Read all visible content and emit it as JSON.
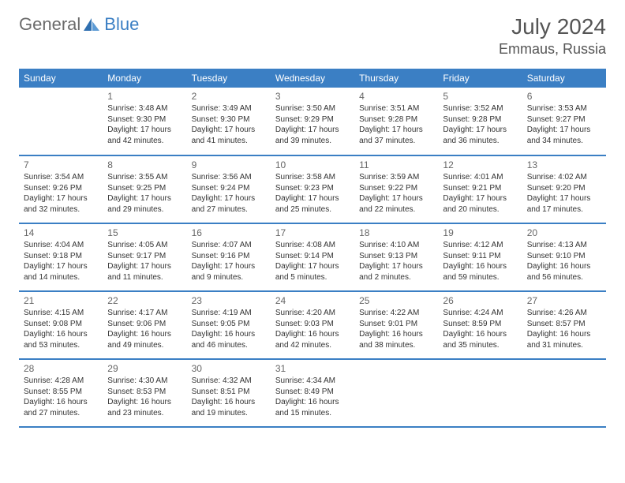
{
  "brand": {
    "general": "General",
    "blue": "Blue"
  },
  "title": {
    "month_year": "July 2024",
    "location": "Emmaus, Russia"
  },
  "colors": {
    "header_bg": "#3b7fc4",
    "header_text": "#ffffff",
    "row_border": "#3b7fc4",
    "body_text": "#333333",
    "title_text": "#555555",
    "logo_general": "#6b6b6b",
    "logo_blue": "#3b7fc4",
    "background": "#ffffff"
  },
  "weekdays": [
    "Sunday",
    "Monday",
    "Tuesday",
    "Wednesday",
    "Thursday",
    "Friday",
    "Saturday"
  ],
  "weeks": [
    [
      null,
      {
        "n": "1",
        "sr": "Sunrise: 3:48 AM",
        "ss": "Sunset: 9:30 PM",
        "d1": "Daylight: 17 hours",
        "d2": "and 42 minutes."
      },
      {
        "n": "2",
        "sr": "Sunrise: 3:49 AM",
        "ss": "Sunset: 9:30 PM",
        "d1": "Daylight: 17 hours",
        "d2": "and 41 minutes."
      },
      {
        "n": "3",
        "sr": "Sunrise: 3:50 AM",
        "ss": "Sunset: 9:29 PM",
        "d1": "Daylight: 17 hours",
        "d2": "and 39 minutes."
      },
      {
        "n": "4",
        "sr": "Sunrise: 3:51 AM",
        "ss": "Sunset: 9:28 PM",
        "d1": "Daylight: 17 hours",
        "d2": "and 37 minutes."
      },
      {
        "n": "5",
        "sr": "Sunrise: 3:52 AM",
        "ss": "Sunset: 9:28 PM",
        "d1": "Daylight: 17 hours",
        "d2": "and 36 minutes."
      },
      {
        "n": "6",
        "sr": "Sunrise: 3:53 AM",
        "ss": "Sunset: 9:27 PM",
        "d1": "Daylight: 17 hours",
        "d2": "and 34 minutes."
      }
    ],
    [
      {
        "n": "7",
        "sr": "Sunrise: 3:54 AM",
        "ss": "Sunset: 9:26 PM",
        "d1": "Daylight: 17 hours",
        "d2": "and 32 minutes."
      },
      {
        "n": "8",
        "sr": "Sunrise: 3:55 AM",
        "ss": "Sunset: 9:25 PM",
        "d1": "Daylight: 17 hours",
        "d2": "and 29 minutes."
      },
      {
        "n": "9",
        "sr": "Sunrise: 3:56 AM",
        "ss": "Sunset: 9:24 PM",
        "d1": "Daylight: 17 hours",
        "d2": "and 27 minutes."
      },
      {
        "n": "10",
        "sr": "Sunrise: 3:58 AM",
        "ss": "Sunset: 9:23 PM",
        "d1": "Daylight: 17 hours",
        "d2": "and 25 minutes."
      },
      {
        "n": "11",
        "sr": "Sunrise: 3:59 AM",
        "ss": "Sunset: 9:22 PM",
        "d1": "Daylight: 17 hours",
        "d2": "and 22 minutes."
      },
      {
        "n": "12",
        "sr": "Sunrise: 4:01 AM",
        "ss": "Sunset: 9:21 PM",
        "d1": "Daylight: 17 hours",
        "d2": "and 20 minutes."
      },
      {
        "n": "13",
        "sr": "Sunrise: 4:02 AM",
        "ss": "Sunset: 9:20 PM",
        "d1": "Daylight: 17 hours",
        "d2": "and 17 minutes."
      }
    ],
    [
      {
        "n": "14",
        "sr": "Sunrise: 4:04 AM",
        "ss": "Sunset: 9:18 PM",
        "d1": "Daylight: 17 hours",
        "d2": "and 14 minutes."
      },
      {
        "n": "15",
        "sr": "Sunrise: 4:05 AM",
        "ss": "Sunset: 9:17 PM",
        "d1": "Daylight: 17 hours",
        "d2": "and 11 minutes."
      },
      {
        "n": "16",
        "sr": "Sunrise: 4:07 AM",
        "ss": "Sunset: 9:16 PM",
        "d1": "Daylight: 17 hours",
        "d2": "and 9 minutes."
      },
      {
        "n": "17",
        "sr": "Sunrise: 4:08 AM",
        "ss": "Sunset: 9:14 PM",
        "d1": "Daylight: 17 hours",
        "d2": "and 5 minutes."
      },
      {
        "n": "18",
        "sr": "Sunrise: 4:10 AM",
        "ss": "Sunset: 9:13 PM",
        "d1": "Daylight: 17 hours",
        "d2": "and 2 minutes."
      },
      {
        "n": "19",
        "sr": "Sunrise: 4:12 AM",
        "ss": "Sunset: 9:11 PM",
        "d1": "Daylight: 16 hours",
        "d2": "and 59 minutes."
      },
      {
        "n": "20",
        "sr": "Sunrise: 4:13 AM",
        "ss": "Sunset: 9:10 PM",
        "d1": "Daylight: 16 hours",
        "d2": "and 56 minutes."
      }
    ],
    [
      {
        "n": "21",
        "sr": "Sunrise: 4:15 AM",
        "ss": "Sunset: 9:08 PM",
        "d1": "Daylight: 16 hours",
        "d2": "and 53 minutes."
      },
      {
        "n": "22",
        "sr": "Sunrise: 4:17 AM",
        "ss": "Sunset: 9:06 PM",
        "d1": "Daylight: 16 hours",
        "d2": "and 49 minutes."
      },
      {
        "n": "23",
        "sr": "Sunrise: 4:19 AM",
        "ss": "Sunset: 9:05 PM",
        "d1": "Daylight: 16 hours",
        "d2": "and 46 minutes."
      },
      {
        "n": "24",
        "sr": "Sunrise: 4:20 AM",
        "ss": "Sunset: 9:03 PM",
        "d1": "Daylight: 16 hours",
        "d2": "and 42 minutes."
      },
      {
        "n": "25",
        "sr": "Sunrise: 4:22 AM",
        "ss": "Sunset: 9:01 PM",
        "d1": "Daylight: 16 hours",
        "d2": "and 38 minutes."
      },
      {
        "n": "26",
        "sr": "Sunrise: 4:24 AM",
        "ss": "Sunset: 8:59 PM",
        "d1": "Daylight: 16 hours",
        "d2": "and 35 minutes."
      },
      {
        "n": "27",
        "sr": "Sunrise: 4:26 AM",
        "ss": "Sunset: 8:57 PM",
        "d1": "Daylight: 16 hours",
        "d2": "and 31 minutes."
      }
    ],
    [
      {
        "n": "28",
        "sr": "Sunrise: 4:28 AM",
        "ss": "Sunset: 8:55 PM",
        "d1": "Daylight: 16 hours",
        "d2": "and 27 minutes."
      },
      {
        "n": "29",
        "sr": "Sunrise: 4:30 AM",
        "ss": "Sunset: 8:53 PM",
        "d1": "Daylight: 16 hours",
        "d2": "and 23 minutes."
      },
      {
        "n": "30",
        "sr": "Sunrise: 4:32 AM",
        "ss": "Sunset: 8:51 PM",
        "d1": "Daylight: 16 hours",
        "d2": "and 19 minutes."
      },
      {
        "n": "31",
        "sr": "Sunrise: 4:34 AM",
        "ss": "Sunset: 8:49 PM",
        "d1": "Daylight: 16 hours",
        "d2": "and 15 minutes."
      },
      null,
      null,
      null
    ]
  ]
}
